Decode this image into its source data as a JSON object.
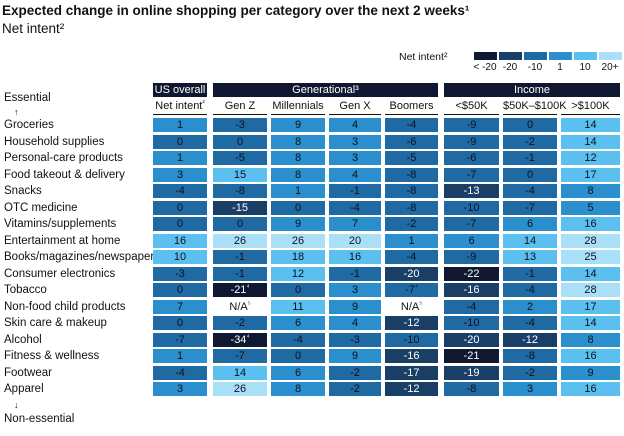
{
  "header": {
    "title": "Expected change in online shopping per category over the next 2 weeks¹",
    "subtitle": "Net intent²"
  },
  "legend": {
    "title": "Net intent²",
    "items": [
      {
        "label": "< -20",
        "color": "#0f1830"
      },
      {
        "label": "-20",
        "color": "#1a3f66"
      },
      {
        "label": "-10",
        "color": "#1f6aa3"
      },
      {
        "label": "1",
        "color": "#2a8fcc"
      },
      {
        "label": "10",
        "color": "#5bc0ef"
      },
      {
        "label": "20+",
        "color": "#a9e0f7"
      }
    ]
  },
  "axis": {
    "top": "Essential",
    "bottom": "Non-essential",
    "arrow_up": "↑",
    "arrow_down": "↓"
  },
  "groups": [
    {
      "label": "US overall"
    },
    {
      "label": "Generational³"
    },
    {
      "label": "Income"
    }
  ],
  "columns": [
    {
      "label": "Net intent²"
    },
    {
      "label": "Gen Z"
    },
    {
      "label": "Millennials"
    },
    {
      "label": "Gen X"
    },
    {
      "label": "Boomers"
    },
    {
      "label": "<$50K"
    },
    {
      "label": "$50K–$100K"
    },
    {
      "label": ">$100K"
    }
  ],
  "chart_data": {
    "type": "heatmap",
    "title": "Expected change in online shopping per category over the next 2 weeks¹",
    "subtitle": "Net intent²",
    "columns": [
      "Net intent²",
      "Gen Z",
      "Millennials",
      "Gen X",
      "Boomers",
      "<$50K",
      "$50K–$100K",
      ">$100K"
    ],
    "rows": [
      {
        "label": "Groceries",
        "cells": [
          "1",
          "-3",
          "9",
          "4",
          "-4",
          "-9",
          "0",
          "14"
        ]
      },
      {
        "label": "Household supplies",
        "cells": [
          "0",
          "0",
          "8",
          "3",
          "-6",
          "-9",
          "-2",
          "14"
        ]
      },
      {
        "label": "Personal-care products",
        "cells": [
          "1",
          "-5",
          "8",
          "3",
          "-5",
          "-6",
          "-1",
          "12"
        ]
      },
      {
        "label": "Food takeout & delivery",
        "cells": [
          "3",
          "15",
          "8",
          "4",
          "-8",
          "-7",
          "0",
          "17"
        ]
      },
      {
        "label": "Snacks",
        "cells": [
          "-4",
          "-8",
          "1",
          "-1",
          "-8",
          "-13",
          "-4",
          "8"
        ]
      },
      {
        "label": "OTC medicine",
        "cells": [
          "0",
          "-15",
          "0",
          "-4",
          "-8",
          "-10",
          "-7",
          "5"
        ]
      },
      {
        "label": "Vitamins/supplements",
        "cells": [
          "0",
          "0",
          "9",
          "7",
          "-2",
          "-7",
          "6",
          "16"
        ]
      },
      {
        "label": "Entertainment at home",
        "cells": [
          "16",
          "26",
          "26",
          "20",
          "1",
          "6",
          "14",
          "28"
        ]
      },
      {
        "label": "Books/magazines/newspapers",
        "cells": [
          "10",
          "-1",
          "18",
          "16",
          "-4",
          "-9",
          "13",
          "25"
        ]
      },
      {
        "label": "Consumer electronics",
        "cells": [
          "-3",
          "-1",
          "12",
          "-1",
          "-20",
          "-22",
          "-1",
          "14"
        ]
      },
      {
        "label": "Tobacco",
        "cells": [
          "0",
          "-21⁴",
          "0",
          "3",
          "-7⁴",
          "-16",
          "-4",
          "28"
        ]
      },
      {
        "label": "Non-food child products",
        "cells": [
          "7",
          "N/A⁵",
          "11",
          "9",
          "N/A⁵",
          "-4",
          "2",
          "17"
        ]
      },
      {
        "label": "Skin care & makeup",
        "cells": [
          "0",
          "-2",
          "6",
          "4",
          "-12",
          "-10",
          "-4",
          "14"
        ]
      },
      {
        "label": "Alcohol",
        "cells": [
          "-7",
          "-34⁴",
          "-4",
          "-3",
          "-10",
          "-20",
          "-12",
          "8"
        ]
      },
      {
        "label": "Fitness & wellness",
        "cells": [
          "1",
          "-7",
          "0",
          "9",
          "-16",
          "-21",
          "-8",
          "16"
        ]
      },
      {
        "label": "Footwear",
        "cells": [
          "-4",
          "14",
          "6",
          "-2",
          "-17",
          "-19",
          "-2",
          "9"
        ]
      },
      {
        "label": "Apparel",
        "cells": [
          "3",
          "26",
          "8",
          "-2",
          "-12",
          "-8",
          "3",
          "16"
        ]
      }
    ]
  }
}
